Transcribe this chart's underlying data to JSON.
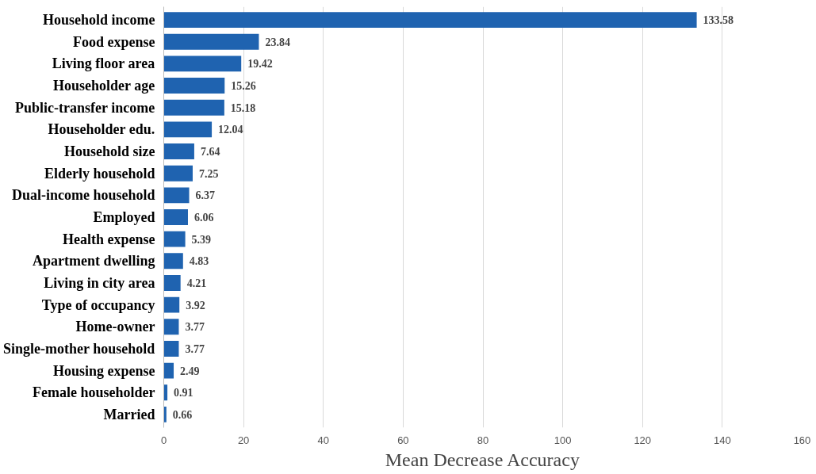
{
  "chart_data": {
    "type": "bar",
    "orientation": "horizontal",
    "xlabel": "Mean Decrease Accuracy",
    "categories": [
      "Household income",
      "Food expense",
      "Living floor area",
      "Householder age",
      "Public-transfer income",
      "Householder edu.",
      "Household size",
      "Elderly household",
      "Dual-income household",
      "Employed",
      "Health expense",
      "Apartment dwelling",
      "Living in city area",
      "Type of occupancy",
      "Home-owner",
      "Single-mother household",
      "Housing expense",
      "Female householder",
      "Married"
    ],
    "values": [
      133.58,
      23.84,
      19.42,
      15.26,
      15.18,
      12.04,
      7.64,
      7.25,
      6.37,
      6.06,
      5.39,
      4.83,
      4.21,
      3.92,
      3.77,
      3.77,
      2.49,
      0.91,
      0.66
    ],
    "color": "#1f63b0",
    "xlim": [
      0,
      160
    ],
    "xticks": [
      0,
      20,
      40,
      60,
      80,
      100,
      120,
      140,
      160
    ],
    "grid": "x",
    "data_labels": true
  }
}
